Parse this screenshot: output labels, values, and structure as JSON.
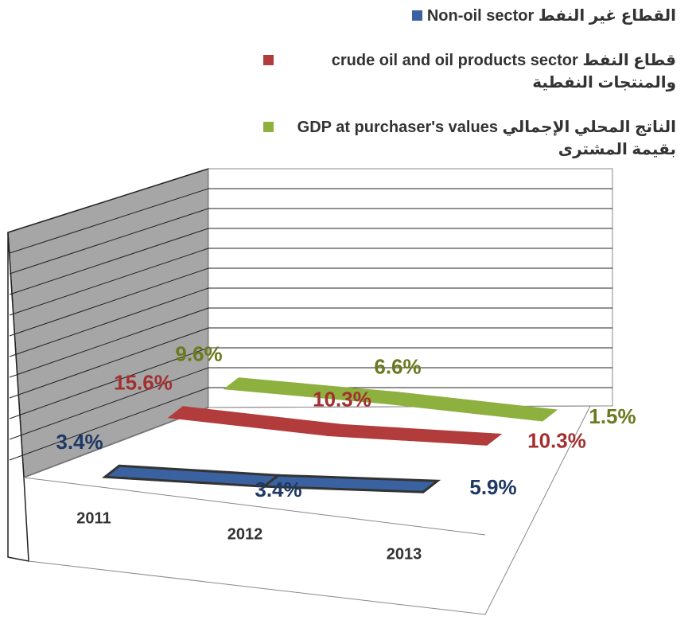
{
  "chart_data": {
    "type": "ribbon3d",
    "categories": [
      "2011",
      "2012",
      "2013"
    ],
    "series": [
      {
        "name": "Non-oil sector القطاع غير النفط",
        "color": "#3b62a0",
        "label_color": "#1f3864",
        "values": [
          3.4,
          3.4,
          5.9
        ],
        "value_labels": [
          "3.4%",
          "3.4%",
          "5.9%"
        ]
      },
      {
        "name": "crude oil and oil products sector قطاع النفط والمنتجات النفطية",
        "color": "#b23b3b",
        "label_color": "#a33030",
        "values": [
          15.6,
          10.3,
          10.3
        ],
        "value_labels": [
          "15.6%",
          "10.3%",
          "10.3%"
        ]
      },
      {
        "name": "GDP at purchaser's values الناتج المحلي الإجمالي بقيمة المشترى",
        "color": "#8db03e",
        "label_color": "#6b7a1e",
        "values": [
          9.6,
          6.6,
          1.5
        ],
        "value_labels": [
          "9.6%",
          "6.6%",
          "1.5%"
        ]
      }
    ]
  }
}
